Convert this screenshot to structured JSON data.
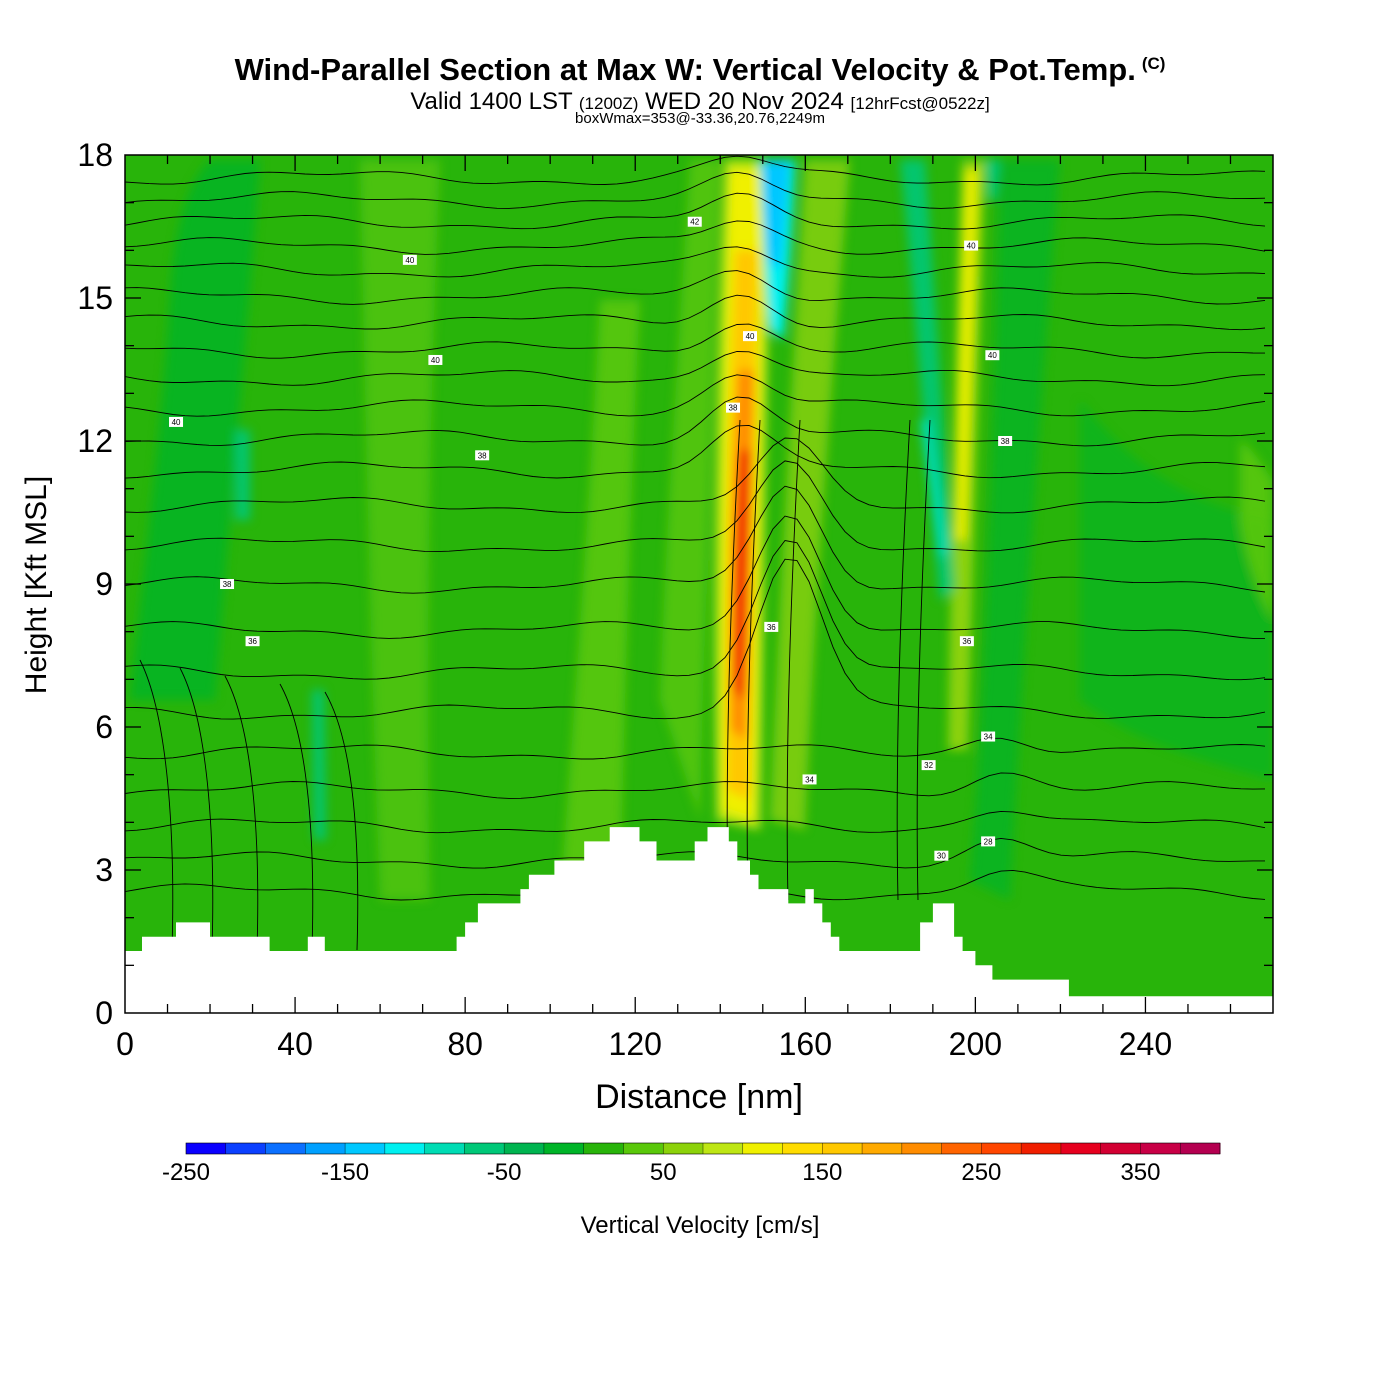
{
  "header": {
    "title": "Wind-Parallel Section at Max W: Vertical Velocity & Pot.Temp.",
    "copyright": "(C)",
    "valid_prefix": "Valid 1400 LST",
    "valid_utc": "(1200Z)",
    "valid_date": "WED 20 Nov 2024",
    "forecast": "[12hrFcst@0522z]",
    "box_info": "boxWmax=353@-33.36,20.76,2249m"
  },
  "chart_data": {
    "type": "heatmap",
    "xlabel": "Distance [nm]",
    "ylabel": "Height [Kft MSL]",
    "xlim": [
      0,
      270
    ],
    "ylim": [
      0,
      18
    ],
    "x_ticks": [
      0,
      40,
      80,
      120,
      160,
      200,
      240
    ],
    "y_ticks": [
      0,
      3,
      6,
      9,
      12,
      15,
      18
    ],
    "colorbar": {
      "label": "Vertical Velocity [cm/s]",
      "min": -250,
      "max": 400,
      "step": 25,
      "tick_values": [
        -250,
        -150,
        -50,
        50,
        150,
        250,
        350
      ],
      "colors": [
        "#0a00ff",
        "#0b40ff",
        "#0b70ff",
        "#00a0ff",
        "#00c8ff",
        "#00f0f0",
        "#00dcb4",
        "#00c878",
        "#00b450",
        "#00b428",
        "#28b40a",
        "#5ac80a",
        "#8cd20a",
        "#bee614",
        "#f0f000",
        "#ffdc00",
        "#ffc800",
        "#ffaa00",
        "#ff8c00",
        "#ff6400",
        "#ff4600",
        "#f01e00",
        "#e6001e",
        "#d20032",
        "#c80046",
        "#b40050"
      ]
    },
    "max_w_cm_s": 353,
    "terrain": [
      [
        0,
        1.3
      ],
      [
        4,
        1.3
      ],
      [
        4,
        1.6
      ],
      [
        12,
        1.6
      ],
      [
        12,
        1.9
      ],
      [
        20,
        1.9
      ],
      [
        20,
        1.6
      ],
      [
        34,
        1.6
      ],
      [
        34,
        1.3
      ],
      [
        43,
        1.3
      ],
      [
        43,
        1.6
      ],
      [
        47,
        1.6
      ],
      [
        47,
        1.3
      ],
      [
        78,
        1.3
      ],
      [
        78,
        1.6
      ],
      [
        80,
        1.6
      ],
      [
        80,
        1.9
      ],
      [
        83,
        1.9
      ],
      [
        83,
        2.3
      ],
      [
        93,
        2.3
      ],
      [
        93,
        2.6
      ],
      [
        95,
        2.6
      ],
      [
        95,
        2.9
      ],
      [
        101,
        2.9
      ],
      [
        101,
        3.2
      ],
      [
        108,
        3.2
      ],
      [
        108,
        3.6
      ],
      [
        114,
        3.6
      ],
      [
        114,
        3.9
      ],
      [
        121,
        3.9
      ],
      [
        121,
        3.6
      ],
      [
        125,
        3.6
      ],
      [
        125,
        3.2
      ],
      [
        134,
        3.2
      ],
      [
        134,
        3.6
      ],
      [
        137,
        3.6
      ],
      [
        137,
        3.9
      ],
      [
        142,
        3.9
      ],
      [
        142,
        3.6
      ],
      [
        144,
        3.6
      ],
      [
        144,
        3.2
      ],
      [
        147,
        3.2
      ],
      [
        147,
        2.9
      ],
      [
        149,
        2.9
      ],
      [
        149,
        2.6
      ],
      [
        156,
        2.6
      ],
      [
        156,
        2.3
      ],
      [
        160,
        2.3
      ],
      [
        160,
        2.6
      ],
      [
        162,
        2.6
      ],
      [
        162,
        2.3
      ],
      [
        164,
        2.3
      ],
      [
        164,
        1.9
      ],
      [
        166,
        1.9
      ],
      [
        166,
        1.6
      ],
      [
        168,
        1.6
      ],
      [
        168,
        1.3
      ],
      [
        187,
        1.3
      ],
      [
        187,
        1.9
      ],
      [
        190,
        1.9
      ],
      [
        190,
        2.3
      ],
      [
        195,
        2.3
      ],
      [
        195,
        1.6
      ],
      [
        197,
        1.6
      ],
      [
        197,
        1.3
      ],
      [
        200,
        1.3
      ],
      [
        200,
        1.0
      ],
      [
        204,
        1.0
      ],
      [
        204,
        0.7
      ],
      [
        222,
        0.7
      ],
      [
        222,
        0.35
      ],
      [
        270,
        0.35
      ]
    ],
    "theta_contour_labels": [
      {
        "value": "40",
        "x": 12,
        "y": 12.4
      },
      {
        "value": "40",
        "x": 67,
        "y": 15.8
      },
      {
        "value": "40",
        "x": 73,
        "y": 13.7
      },
      {
        "value": "38",
        "x": 84,
        "y": 11.7
      },
      {
        "value": "38",
        "x": 24,
        "y": 9.0
      },
      {
        "value": "36",
        "x": 30,
        "y": 7.8
      },
      {
        "value": "42",
        "x": 134,
        "y": 16.6
      },
      {
        "value": "40",
        "x": 147,
        "y": 14.2
      },
      {
        "value": "38",
        "x": 143,
        "y": 12.7
      },
      {
        "value": "36",
        "x": 152,
        "y": 8.1
      },
      {
        "value": "34",
        "x": 161,
        "y": 4.9
      },
      {
        "value": "40",
        "x": 199,
        "y": 16.1
      },
      {
        "value": "40",
        "x": 204,
        "y": 13.8
      },
      {
        "value": "38",
        "x": 207,
        "y": 12.0
      },
      {
        "value": "36",
        "x": 198,
        "y": 7.8
      },
      {
        "value": "34",
        "x": 203,
        "y": 5.8
      },
      {
        "value": "32",
        "x": 189,
        "y": 5.2
      },
      {
        "value": "30",
        "x": 192,
        "y": 3.3
      },
      {
        "value": "28",
        "x": 203,
        "y": 3.6
      }
    ]
  }
}
